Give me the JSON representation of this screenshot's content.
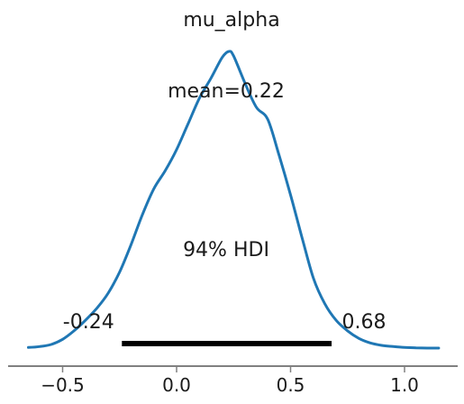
{
  "chart_data": {
    "type": "line",
    "title": "mu_alpha",
    "xlabel": "",
    "ylabel": "",
    "xlim": [
      -0.66,
      1.24
    ],
    "ylim": [
      0,
      1.0
    ],
    "x_ticks": [
      -0.5,
      0.0,
      0.5,
      1.0
    ],
    "x_tick_labels": [
      "−0.5",
      "0.0",
      "0.5",
      "1.0"
    ],
    "grid": false,
    "mean_label": "mean=0.22",
    "hdi": {
      "label": "94% HDI",
      "lower": -0.24,
      "upper": 0.68,
      "lower_label": "-0.24",
      "upper_label": "0.68"
    },
    "series": [
      {
        "color": "#1f77b4",
        "x": [
          -0.65,
          -0.6,
          -0.55,
          -0.5,
          -0.45,
          -0.4,
          -0.35,
          -0.3,
          -0.25,
          -0.2,
          -0.15,
          -0.1,
          -0.05,
          0.0,
          0.05,
          0.1,
          0.15,
          0.2,
          0.23,
          0.25,
          0.3,
          0.35,
          0.4,
          0.45,
          0.5,
          0.55,
          0.6,
          0.65,
          0.7,
          0.75,
          0.8,
          0.85,
          0.9,
          0.95,
          1.0,
          1.05,
          1.1,
          1.15
        ],
        "y": [
          0.005,
          0.008,
          0.015,
          0.032,
          0.06,
          0.095,
          0.135,
          0.185,
          0.255,
          0.345,
          0.445,
          0.53,
          0.59,
          0.66,
          0.745,
          0.83,
          0.895,
          0.965,
          0.985,
          0.97,
          0.88,
          0.8,
          0.76,
          0.64,
          0.51,
          0.37,
          0.235,
          0.15,
          0.095,
          0.06,
          0.035,
          0.02,
          0.012,
          0.008,
          0.005,
          0.004,
          0.003,
          0.003
        ]
      }
    ]
  }
}
